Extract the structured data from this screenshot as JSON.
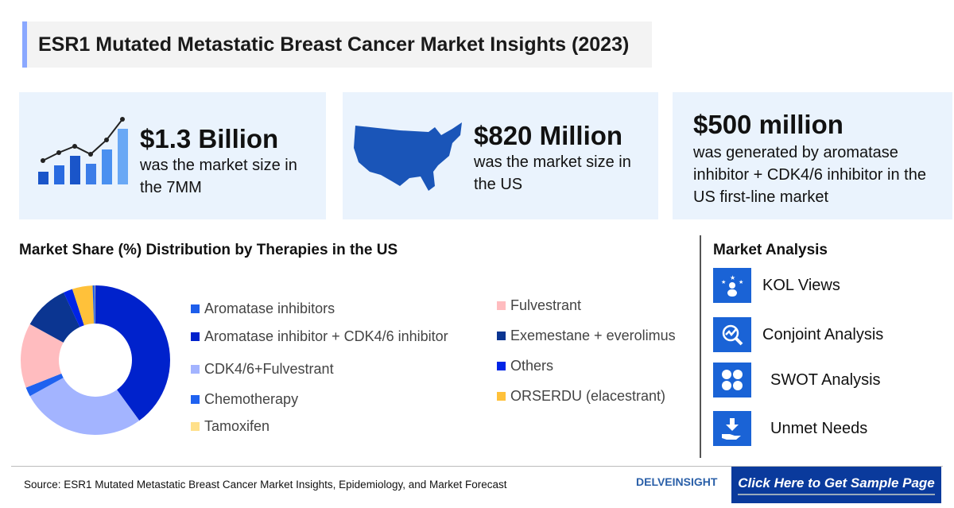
{
  "title": "ESR1 Mutated Metastatic Breast Cancer Market Insights (2023)",
  "cards": [
    {
      "value": "$1.3 Billion",
      "text": "was the market size in the 7MM",
      "icon": "bar-chart-icon"
    },
    {
      "value": "$820 Million",
      "text": "was the market size in the US",
      "icon": "us-map-icon"
    },
    {
      "value": "$500 million",
      "text": "was generated by aromatase inhibitor + CDK4/6 inhibitor in the US first-line market"
    }
  ],
  "chart_data": {
    "type": "pie",
    "title": "Market Share (%) Distribution by Therapies in the US",
    "categories": [
      "Aromatase inhibitors",
      "Aromatase inhibitor + CDK4/6 inhibitor",
      "CDK4/6+Fulvestrant",
      "Chemotherapy",
      "Tamoxifen",
      "Fulvestrant",
      "Exemestane + everolimus",
      "Others",
      "ORSERDU (elacestrant)"
    ],
    "values": [
      0.5,
      40,
      27,
      2,
      0.1,
      14,
      10,
      2,
      4.4
    ],
    "colors": [
      "#1e5eeb",
      "#0022cc",
      "#a3b4ff",
      "#1f62f0",
      "#ffe08a",
      "#ffbcbf",
      "#0b3591",
      "#0024e6",
      "#ffc13a"
    ],
    "order": [
      1,
      2,
      3,
      5,
      6,
      7,
      8,
      0,
      4
    ],
    "legend": "right"
  },
  "analysis": {
    "title": "Market Analysis",
    "items": [
      {
        "label": "KOL Views",
        "icon": "kol-icon"
      },
      {
        "label": "Conjoint Analysis",
        "icon": "conjoint-icon"
      },
      {
        "label": "SWOT Analysis",
        "icon": "swot-icon"
      },
      {
        "label": "Unmet Needs",
        "icon": "unmet-needs-icon"
      }
    ]
  },
  "footer": {
    "source": "Source: ESR1 Mutated Metastatic Breast Cancer Market Insights, Epidemiology, and Market Forecast",
    "logo": "DELVEINSIGHT",
    "cta": "Click Here to Get Sample Page"
  }
}
